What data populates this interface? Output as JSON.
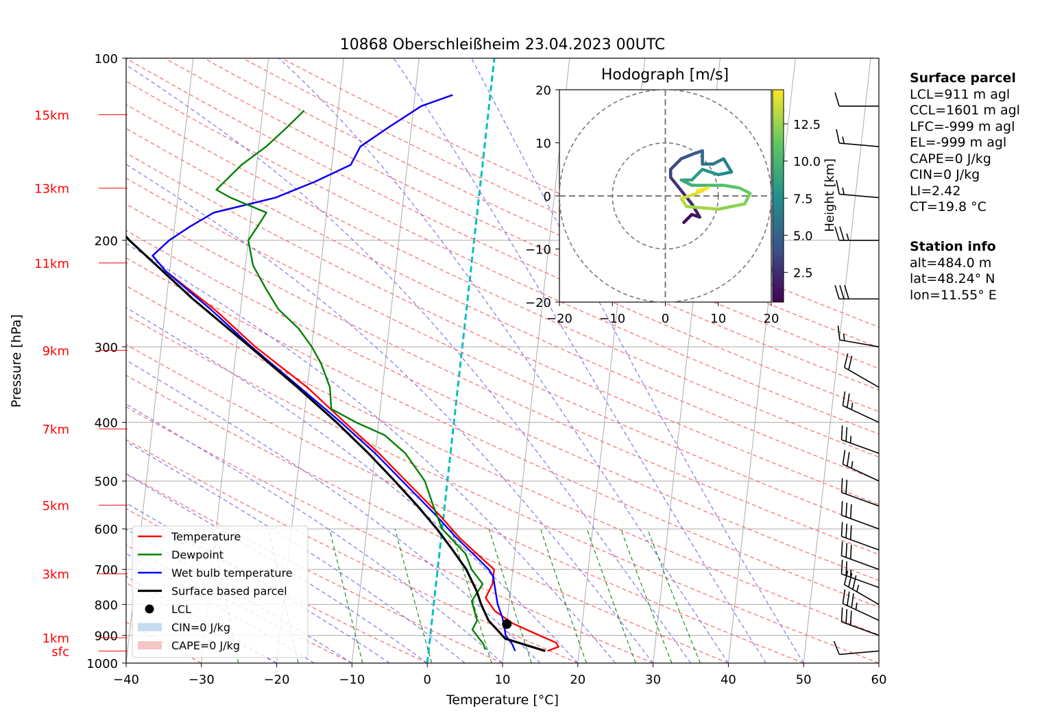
{
  "title": "10868 Oberschleißheim 23.04.2023 00UTC",
  "side_panel": {
    "surface_heading": "Surface parcel",
    "surface_lines": [
      "LCL=911 m agl",
      "CCL=1601 m agl",
      "LFC=-999 m agl",
      "EL=-999 m agl",
      "CAPE=0 J/kg",
      "CIN=0 J/kg",
      "LI=2.42",
      "CT=19.8 °C"
    ],
    "station_heading": "Station info",
    "station_lines": [
      "alt=484.0 m",
      "lat=48.24° N",
      "lon=11.55° E"
    ]
  },
  "chart_data": [
    {
      "type": "line",
      "subtype": "skew-T log-p diagram",
      "xlabel": "Temperature [°C]",
      "ylabel": "Pressure [hPa]",
      "xlim": [
        -40,
        60
      ],
      "ylim": [
        1000,
        100
      ],
      "y_scale": "log",
      "x_ticks": [
        -40,
        -30,
        -20,
        -10,
        0,
        10,
        20,
        30,
        40,
        50,
        60
      ],
      "p_ticks": [
        100,
        200,
        300,
        400,
        500,
        600,
        700,
        800,
        900,
        1000
      ],
      "height_labels": [
        {
          "label": "15km",
          "p": 124
        },
        {
          "label": "13km",
          "p": 164
        },
        {
          "label": "11km",
          "p": 218
        },
        {
          "label": "9km",
          "p": 304
        },
        {
          "label": "7km",
          "p": 410
        },
        {
          "label": "5km",
          "p": 548
        },
        {
          "label": "3km",
          "p": 712
        },
        {
          "label": "1km",
          "p": 908
        },
        {
          "label": "sfc",
          "p": 955
        }
      ],
      "legend_position": "lower-left",
      "legend": [
        "Temperature",
        "Dewpoint",
        "Wet bulb temperature",
        "Surface based parcel",
        "LCL",
        "CIN=0 J/kg",
        "CAPE=0 J/kg"
      ],
      "colors": {
        "temperature": "#ff0000",
        "dewpoint": "#008000",
        "wetbulb": "#0000ff",
        "parcel": "#000000",
        "dry_adiabat": "#ff6666",
        "moist_adiabat": "#7777ee",
        "mixing_ratio": "#228b22",
        "isotherm": "#aaaaaa",
        "zero_isotherm": "#00bfbf",
        "cin": "#c6dbef",
        "cape": "#f4c6c6"
      },
      "series": [
        {
          "name": "Temperature",
          "points": [
            [
              955,
              15.8
            ],
            [
              940,
              17.2
            ],
            [
              925,
              16.8
            ],
            [
              900,
              14.5
            ],
            [
              860,
              10.8
            ],
            [
              820,
              8.2
            ],
            [
              780,
              6.8
            ],
            [
              740,
              7.5
            ],
            [
              700,
              7.5
            ],
            [
              660,
              5.0
            ],
            [
              620,
              2.4
            ],
            [
              570,
              -0.5
            ],
            [
              500,
              -5.5
            ],
            [
              450,
              -9.5
            ],
            [
              400,
              -14.5
            ],
            [
              350,
              -20
            ],
            [
              300,
              -27.5
            ],
            [
              260,
              -33.5
            ],
            [
              225,
              -40.5
            ],
            [
              212,
              -42.5
            ],
            [
              200,
              -40.5
            ],
            [
              190,
              -38
            ],
            [
              180,
              -35
            ],
            [
              170,
              -27
            ],
            [
              160,
              -22
            ],
            [
              150,
              -17.5
            ],
            [
              140,
              -16.5
            ],
            [
              130,
              -13
            ],
            [
              120,
              -9
            ],
            [
              115,
              -5
            ]
          ]
        },
        {
          "name": "Dewpoint",
          "points": [
            [
              950,
              7.5
            ],
            [
              930,
              7.2
            ],
            [
              910,
              6.5
            ],
            [
              880,
              5.5
            ],
            [
              850,
              6
            ],
            [
              820,
              5.5
            ],
            [
              790,
              5
            ],
            [
              740,
              6.2
            ],
            [
              700,
              4.5
            ],
            [
              660,
              3.5
            ],
            [
              600,
              0
            ],
            [
              550,
              -1.5
            ],
            [
              500,
              -3
            ],
            [
              450,
              -6
            ],
            [
              420,
              -9
            ],
            [
              400,
              -13
            ],
            [
              380,
              -16.5
            ],
            [
              350,
              -17
            ],
            [
              320,
              -18.5
            ],
            [
              300,
              -20
            ],
            [
              280,
              -22
            ],
            [
              260,
              -25
            ],
            [
              240,
              -27
            ],
            [
              220,
              -29
            ],
            [
              200,
              -30
            ],
            [
              190,
              -29
            ],
            [
              180,
              -28
            ],
            [
              170,
              -33
            ],
            [
              165,
              -35
            ],
            [
              150,
              -32
            ],
            [
              140,
              -29
            ],
            [
              130,
              -26.5
            ],
            [
              122,
              -24.5
            ]
          ]
        },
        {
          "name": "Wet bulb temperature",
          "points": [
            [
              955,
              11.5
            ],
            [
              930,
              11
            ],
            [
              900,
              10
            ],
            [
              870,
              9.7
            ],
            [
              840,
              9.3
            ],
            [
              800,
              8.5
            ],
            [
              760,
              8
            ],
            [
              720,
              7.5
            ],
            [
              700,
              6.8
            ],
            [
              660,
              4.5
            ],
            [
              620,
              2
            ],
            [
              570,
              -1
            ],
            [
              500,
              -6
            ],
            [
              450,
              -10
            ],
            [
              400,
              -15
            ],
            [
              350,
              -21
            ],
            [
              300,
              -28
            ],
            [
              260,
              -34
            ],
            [
              225,
              -40.5
            ],
            [
              212,
              -42.5
            ],
            [
              200,
              -40.5
            ],
            [
              190,
              -38
            ],
            [
              180,
              -35
            ],
            [
              170,
              -27
            ],
            [
              160,
              -22
            ],
            [
              150,
              -17.5
            ],
            [
              140,
              -16.5
            ],
            [
              130,
              -13
            ],
            [
              120,
              -9
            ],
            [
              115,
              -5
            ]
          ]
        },
        {
          "name": "Surface based parcel",
          "points": [
            [
              955,
              15.5
            ],
            [
              911,
              10.0
            ],
            [
              850,
              7.5
            ],
            [
              800,
              6.3
            ],
            [
              760,
              5.5
            ],
            [
              700,
              3.8
            ],
            [
              650,
              1.7
            ],
            [
              600,
              -0.7
            ],
            [
              550,
              -3.6
            ],
            [
              500,
              -7
            ],
            [
              450,
              -10.9
            ],
            [
              400,
              -15.6
            ],
            [
              350,
              -21.3
            ],
            [
              300,
              -28.2
            ],
            [
              250,
              -36.5
            ],
            [
              200,
              -45.8
            ],
            [
              175,
              -50.4
            ],
            [
              150,
              -54.7
            ],
            [
              135,
              -57.2
            ],
            [
              127,
              -58.3
            ]
          ]
        }
      ],
      "lcl": {
        "p": 862,
        "t": 10.0
      },
      "cape_j_kg": 0,
      "cin_j_kg": 0,
      "wind_barbs": [
        {
          "p": 955,
          "speed_kt": 10,
          "direction_deg": 265
        },
        {
          "p": 900,
          "speed_kt": 30,
          "direction_deg": 290
        },
        {
          "p": 850,
          "speed_kt": 35,
          "direction_deg": 295
        },
        {
          "p": 800,
          "speed_kt": 35,
          "direction_deg": 300
        },
        {
          "p": 750,
          "speed_kt": 25,
          "direction_deg": 290
        },
        {
          "p": 700,
          "speed_kt": 30,
          "direction_deg": 290
        },
        {
          "p": 650,
          "speed_kt": 30,
          "direction_deg": 290
        },
        {
          "p": 600,
          "speed_kt": 30,
          "direction_deg": 290
        },
        {
          "p": 550,
          "speed_kt": 20,
          "direction_deg": 290
        },
        {
          "p": 500,
          "speed_kt": 25,
          "direction_deg": 295
        },
        {
          "p": 450,
          "speed_kt": 25,
          "direction_deg": 290
        },
        {
          "p": 400,
          "speed_kt": 25,
          "direction_deg": 295
        },
        {
          "p": 350,
          "speed_kt": 20,
          "direction_deg": 300
        },
        {
          "p": 300,
          "speed_kt": 15,
          "direction_deg": 280
        },
        {
          "p": 250,
          "speed_kt": 30,
          "direction_deg": 270
        },
        {
          "p": 200,
          "speed_kt": 25,
          "direction_deg": 270
        },
        {
          "p": 170,
          "speed_kt": 15,
          "direction_deg": 275
        },
        {
          "p": 140,
          "speed_kt": 15,
          "direction_deg": 275
        },
        {
          "p": 120,
          "speed_kt": 10,
          "direction_deg": 270
        }
      ]
    },
    {
      "type": "line",
      "subtype": "hodograph",
      "title": "Hodograph [m/s]",
      "xlim": [
        -20,
        20
      ],
      "ylim": [
        -20,
        20
      ],
      "x_ticks": [
        -20,
        -10,
        0,
        10,
        20
      ],
      "y_ticks": [
        -20,
        -10,
        0,
        10,
        20
      ],
      "rings_m_s": [
        10,
        20
      ],
      "colorbar": {
        "label": "Height [km]",
        "min": 0.5,
        "max": 14.8,
        "ticks": [
          2.5,
          5.0,
          7.5,
          10.0,
          12.5
        ],
        "tick_labels": [
          "2.5",
          "5.0",
          "7.5",
          "10.0",
          "12.5"
        ],
        "colormap": "viridis"
      },
      "points": [
        {
          "h": 0.5,
          "u": 3.5,
          "v": -5
        },
        {
          "h": 1,
          "u": 5,
          "v": -3.5
        },
        {
          "h": 1.5,
          "u": 6.5,
          "v": -4
        },
        {
          "h": 2,
          "u": 5,
          "v": -1.5
        },
        {
          "h": 2.5,
          "u": 3,
          "v": 1
        },
        {
          "h": 3,
          "u": 1,
          "v": 3.5
        },
        {
          "h": 3.5,
          "u": 1,
          "v": 5
        },
        {
          "h": 4,
          "u": 3,
          "v": 7
        },
        {
          "h": 4.5,
          "u": 5.5,
          "v": 8
        },
        {
          "h": 5,
          "u": 7,
          "v": 8.5
        },
        {
          "h": 5.5,
          "u": 7,
          "v": 6
        },
        {
          "h": 6,
          "u": 9,
          "v": 6
        },
        {
          "h": 6.5,
          "u": 11,
          "v": 7
        },
        {
          "h": 7,
          "u": 12.5,
          "v": 4.5
        },
        {
          "h": 7.5,
          "u": 10,
          "v": 4
        },
        {
          "h": 8,
          "u": 7,
          "v": 5
        },
        {
          "h": 8.5,
          "u": 5,
          "v": 3
        },
        {
          "h": 9,
          "u": 3,
          "v": 3
        },
        {
          "h": 9.5,
          "u": 5,
          "v": 2
        },
        {
          "h": 10,
          "u": 8,
          "v": 2
        },
        {
          "h": 10.5,
          "u": 11,
          "v": 2
        },
        {
          "h": 11,
          "u": 14,
          "v": 1.5
        },
        {
          "h": 11.5,
          "u": 16,
          "v": 0.5
        },
        {
          "h": 12,
          "u": 15,
          "v": -1.5
        },
        {
          "h": 12.5,
          "u": 10,
          "v": -2.5
        },
        {
          "h": 13,
          "u": 4,
          "v": -2
        },
        {
          "h": 13.5,
          "u": 3,
          "v": -0.5
        },
        {
          "h": 14,
          "u": 6,
          "v": 0.5
        },
        {
          "h": 14.5,
          "u": 8,
          "v": 1.5
        },
        {
          "h": 14.8,
          "u": 6,
          "v": 1
        }
      ]
    }
  ]
}
